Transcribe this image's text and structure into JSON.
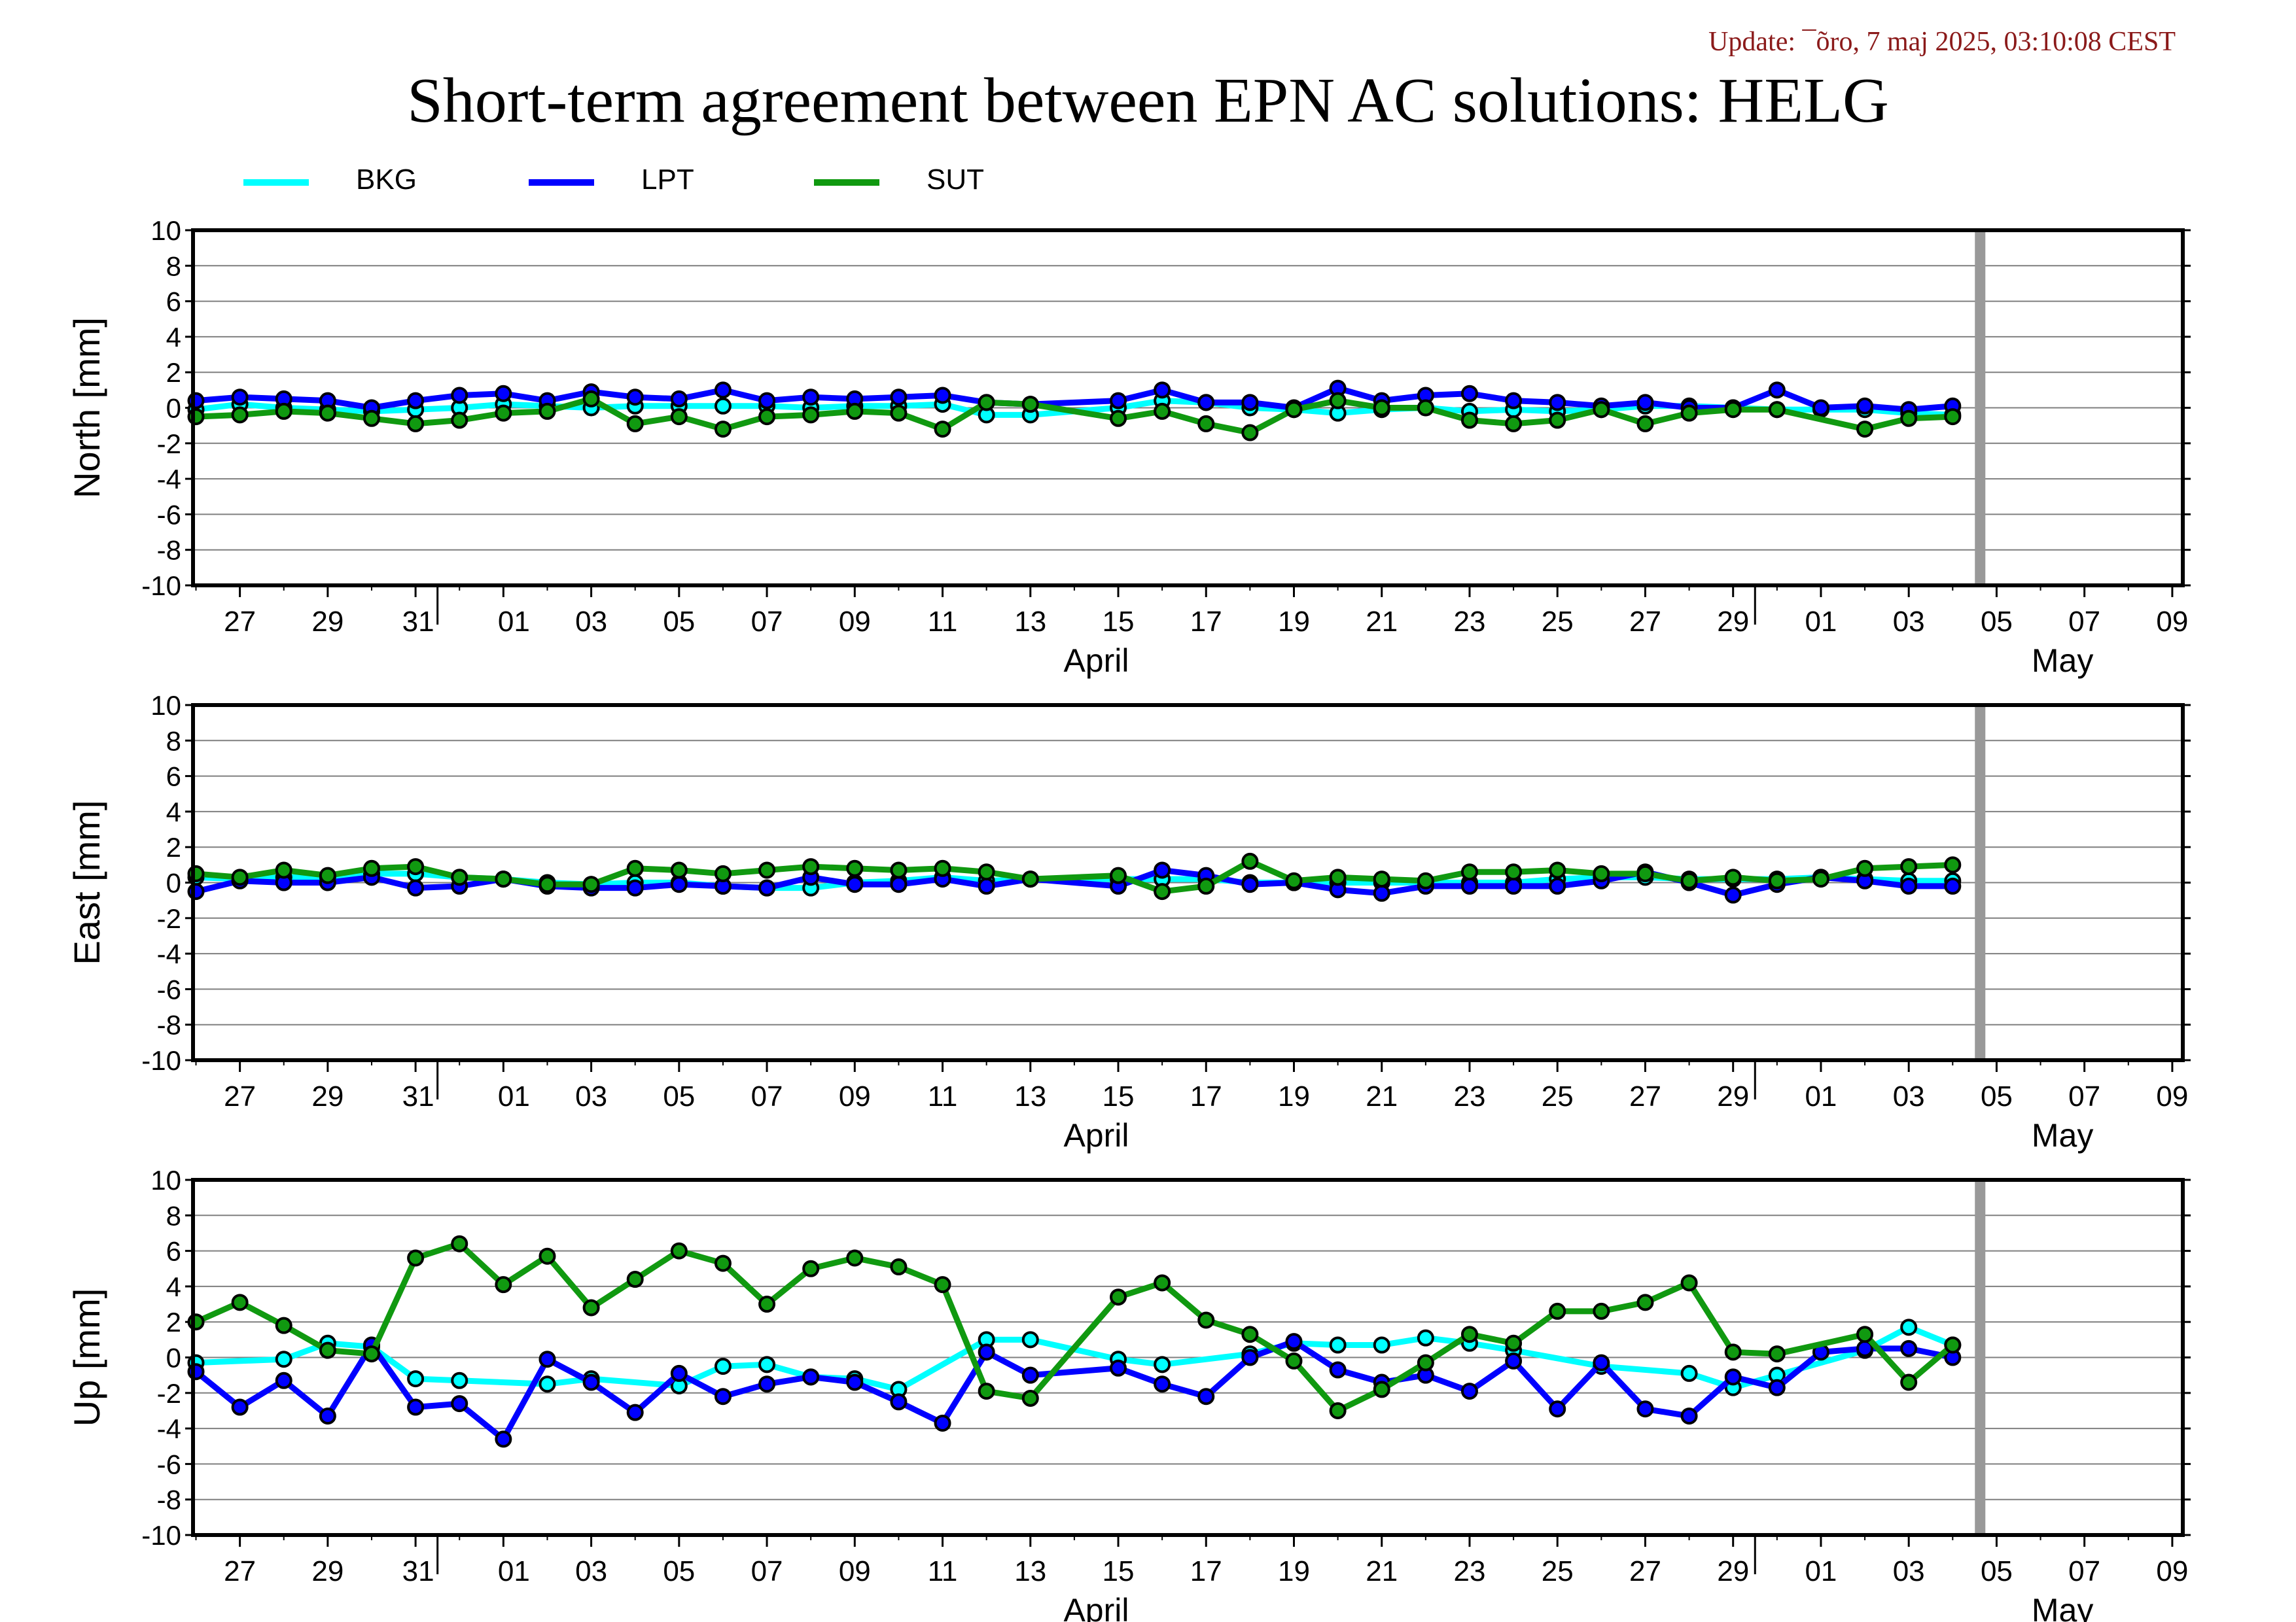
{
  "header": {
    "update_text": "Update: ¯õro, 7 maj 2025, 03:10:08 CEST",
    "title": "Short-term agreement between EPN AC solutions: HELG"
  },
  "legend": [
    {
      "label": "BKG",
      "color": "#00ffff"
    },
    {
      "label": "LPT",
      "color": "#0000ff"
    },
    {
      "label": "SUT",
      "color": "#109910"
    }
  ],
  "chart_data": [
    {
      "type": "line",
      "ylabel": "North [mm]",
      "ylim": [
        -10,
        10
      ],
      "yticks": [
        10,
        8,
        6,
        4,
        2,
        0,
        -2,
        -4,
        -6,
        -8,
        -10
      ],
      "grid": true,
      "x_tick_labels": [
        "27",
        "29",
        "31",
        "01",
        "03",
        "05",
        "07",
        "09",
        "11",
        "13",
        "15",
        "17",
        "19",
        "21",
        "23",
        "25",
        "27",
        "29",
        "01",
        "03",
        "05",
        "07",
        "09"
      ],
      "month_labels": [
        "April",
        "May"
      ],
      "x_dates": [
        "2025-03-26",
        "2025-03-27",
        "2025-03-28",
        "2025-03-29",
        "2025-03-30",
        "2025-03-31",
        "2025-04-01",
        "2025-04-02",
        "2025-04-03",
        "2025-04-04",
        "2025-04-05",
        "2025-04-06",
        "2025-04-07",
        "2025-04-08",
        "2025-04-09",
        "2025-04-10",
        "2025-04-11",
        "2025-04-12",
        "2025-04-13",
        "2025-04-14",
        "2025-04-15",
        "2025-04-16",
        "2025-04-17",
        "2025-04-18",
        "2025-04-19",
        "2025-04-20",
        "2025-04-21",
        "2025-04-22",
        "2025-04-23",
        "2025-04-24",
        "2025-04-25",
        "2025-04-26",
        "2025-04-27",
        "2025-04-28",
        "2025-04-29",
        "2025-04-30",
        "2025-05-01",
        "2025-05-02",
        "2025-05-03",
        "2025-05-04",
        "2025-05-05"
      ],
      "series": [
        {
          "name": "BKG",
          "color": "#00ffff",
          "values": [
            -0.1,
            0.2,
            0.0,
            -0.1,
            -0.2,
            -0.1,
            0.0,
            0.2,
            0.1,
            0.0,
            0.1,
            0.1,
            0.1,
            0.1,
            0.0,
            0.1,
            0.1,
            0.2,
            -0.4,
            -0.4,
            null,
            0.0,
            0.4,
            0.3,
            0.0,
            -0.1,
            -0.3,
            -0.1,
            0.0,
            -0.2,
            -0.1,
            -0.2,
            -0.1,
            0.1,
            0.1,
            0.0,
            -0.1,
            -0.1,
            -0.1,
            -0.3,
            -0.4
          ]
        },
        {
          "name": "LPT",
          "color": "#0000ff",
          "values": [
            0.4,
            0.6,
            0.5,
            0.4,
            0.0,
            0.4,
            0.7,
            0.8,
            0.4,
            0.9,
            0.6,
            0.5,
            1.0,
            0.4,
            0.6,
            0.5,
            0.6,
            0.7,
            0.3,
            0.2,
            null,
            0.4,
            1.0,
            0.3,
            0.3,
            0.0,
            1.1,
            0.4,
            0.7,
            0.8,
            0.4,
            0.3,
            0.1,
            0.3,
            0.0,
            0.0,
            1.0,
            0.0,
            0.1,
            -0.1,
            0.1
          ]
        },
        {
          "name": "SUT",
          "color": "#109910",
          "values": [
            -0.5,
            -0.4,
            -0.2,
            -0.3,
            -0.6,
            -0.9,
            -0.7,
            -0.3,
            -0.2,
            0.5,
            -0.9,
            -0.5,
            -1.2,
            -0.5,
            -0.4,
            -0.2,
            -0.3,
            -1.2,
            0.3,
            0.2,
            null,
            -0.6,
            -0.2,
            -0.9,
            -1.4,
            -0.1,
            0.4,
            0.0,
            0.0,
            -0.7,
            -0.9,
            -0.7,
            -0.1,
            -0.9,
            -0.3,
            -0.1,
            -0.1,
            null,
            -1.2,
            -0.6,
            -0.5
          ]
        }
      ]
    },
    {
      "type": "line",
      "ylabel": "East [mm]",
      "ylim": [
        -10,
        10
      ],
      "yticks": [
        10,
        8,
        6,
        4,
        2,
        0,
        -2,
        -4,
        -6,
        -8,
        -10
      ],
      "grid": true,
      "x_tick_labels": [
        "27",
        "29",
        "31",
        "01",
        "03",
        "05",
        "07",
        "09",
        "11",
        "13",
        "15",
        "17",
        "19",
        "21",
        "23",
        "25",
        "27",
        "29",
        "01",
        "03",
        "05",
        "07",
        "09"
      ],
      "month_labels": [
        "April",
        "May"
      ],
      "x_dates": [
        "2025-03-26",
        "2025-03-27",
        "2025-03-28",
        "2025-03-29",
        "2025-03-30",
        "2025-03-31",
        "2025-04-01",
        "2025-04-02",
        "2025-04-03",
        "2025-04-04",
        "2025-04-05",
        "2025-04-06",
        "2025-04-07",
        "2025-04-08",
        "2025-04-09",
        "2025-04-10",
        "2025-04-11",
        "2025-04-12",
        "2025-04-13",
        "2025-04-14",
        "2025-04-15",
        "2025-04-16",
        "2025-04-17",
        "2025-04-18",
        "2025-04-19",
        "2025-04-20",
        "2025-04-21",
        "2025-04-22",
        "2025-04-23",
        "2025-04-24",
        "2025-04-25",
        "2025-04-26",
        "2025-04-27",
        "2025-04-28",
        "2025-04-29",
        "2025-04-30",
        "2025-05-01",
        "2025-05-02",
        "2025-05-03",
        "2025-05-04",
        "2025-05-05"
      ],
      "series": [
        {
          "name": "BKG",
          "color": "#00ffff",
          "values": [
            0.3,
            0.2,
            0.3,
            0.3,
            0.5,
            0.5,
            0.3,
            0.2,
            0.0,
            -0.1,
            0.0,
            0.0,
            -0.2,
            -0.3,
            -0.3,
            0.0,
            0.1,
            0.3,
            0.1,
            0.2,
            null,
            0.2,
            0.2,
            0.2,
            0.0,
            0.0,
            0.0,
            0.0,
            0.0,
            0.0,
            0.0,
            0.2,
            0.3,
            0.3,
            0.2,
            0.2,
            0.2,
            0.3,
            0.2,
            0.1,
            0.1
          ]
        },
        {
          "name": "LPT",
          "color": "#0000ff",
          "values": [
            -0.5,
            0.1,
            0.0,
            0.0,
            0.3,
            -0.3,
            -0.2,
            0.2,
            -0.2,
            -0.3,
            -0.3,
            -0.1,
            -0.2,
            -0.3,
            0.3,
            -0.1,
            -0.1,
            0.2,
            -0.2,
            0.2,
            null,
            -0.2,
            0.7,
            0.4,
            -0.1,
            0.0,
            -0.4,
            -0.6,
            -0.2,
            -0.2,
            -0.2,
            -0.2,
            0.1,
            0.6,
            0.0,
            -0.7,
            -0.1,
            0.3,
            0.1,
            -0.2,
            -0.2
          ]
        },
        {
          "name": "SUT",
          "color": "#109910",
          "values": [
            0.5,
            0.3,
            0.7,
            0.4,
            0.8,
            0.9,
            0.3,
            0.2,
            -0.1,
            -0.1,
            0.8,
            0.7,
            0.5,
            0.7,
            0.9,
            0.8,
            0.7,
            0.8,
            0.6,
            0.2,
            null,
            0.4,
            -0.5,
            -0.2,
            1.2,
            0.1,
            0.3,
            0.2,
            0.1,
            0.6,
            0.6,
            0.7,
            0.5,
            0.5,
            0.1,
            0.3,
            0.1,
            0.2,
            0.8,
            0.9,
            1.0
          ]
        }
      ]
    },
    {
      "type": "line",
      "ylabel": "Up [mm]",
      "ylim": [
        -10,
        10
      ],
      "yticks": [
        10,
        8,
        6,
        4,
        2,
        0,
        -2,
        -4,
        -6,
        -8,
        -10
      ],
      "grid": true,
      "x_tick_labels": [
        "27",
        "29",
        "31",
        "01",
        "03",
        "05",
        "07",
        "09",
        "11",
        "13",
        "15",
        "17",
        "19",
        "21",
        "23",
        "25",
        "27",
        "29",
        "01",
        "03",
        "05",
        "07",
        "09"
      ],
      "month_labels": [
        "April",
        "May"
      ],
      "x_dates": [
        "2025-03-26",
        "2025-03-27",
        "2025-03-28",
        "2025-03-29",
        "2025-03-30",
        "2025-03-31",
        "2025-04-01",
        "2025-04-02",
        "2025-04-03",
        "2025-04-04",
        "2025-04-05",
        "2025-04-06",
        "2025-04-07",
        "2025-04-08",
        "2025-04-09",
        "2025-04-10",
        "2025-04-11",
        "2025-04-12",
        "2025-04-13",
        "2025-04-14",
        "2025-04-15",
        "2025-04-16",
        "2025-04-17",
        "2025-04-18",
        "2025-04-19",
        "2025-04-20",
        "2025-04-21",
        "2025-04-22",
        "2025-04-23",
        "2025-04-24",
        "2025-04-25",
        "2025-04-26",
        "2025-04-27",
        "2025-04-28",
        "2025-04-29",
        "2025-04-30",
        "2025-05-01",
        "2025-05-02",
        "2025-05-03",
        "2025-05-04",
        "2025-05-05"
      ],
      "series": [
        {
          "name": "BKG",
          "color": "#00ffff",
          "values": [
            -0.3,
            null,
            -0.1,
            0.8,
            0.6,
            -1.2,
            -1.3,
            null,
            -1.5,
            -1.2,
            null,
            -1.6,
            -0.5,
            -0.4,
            -1.1,
            -1.2,
            -1.8,
            null,
            1.0,
            1.0,
            null,
            -0.1,
            -0.4,
            null,
            0.2,
            0.8,
            0.7,
            0.7,
            1.1,
            0.8,
            0.4,
            null,
            -0.5,
            null,
            -0.9,
            -1.7,
            -1.0,
            null,
            0.4,
            1.7,
            0.7
          ]
        },
        {
          "name": "LPT",
          "color": "#0000ff",
          "values": [
            -0.8,
            -2.8,
            -1.3,
            -3.3,
            0.7,
            -2.8,
            -2.6,
            -4.6,
            -0.1,
            -1.4,
            -3.1,
            -0.9,
            -2.2,
            -1.5,
            -1.1,
            -1.4,
            -2.5,
            -3.7,
            0.3,
            -1.0,
            null,
            -0.6,
            -1.5,
            -2.2,
            0.0,
            0.9,
            -0.7,
            -1.4,
            -1.0,
            -1.9,
            -0.2,
            -2.9,
            -0.3,
            -2.9,
            -3.3,
            -1.1,
            -1.7,
            0.3,
            0.5,
            0.5,
            0.0
          ]
        },
        {
          "name": "SUT",
          "color": "#109910",
          "values": [
            2.0,
            3.1,
            1.8,
            0.4,
            0.2,
            5.6,
            6.4,
            4.1,
            5.7,
            2.8,
            4.4,
            6.0,
            5.3,
            3.0,
            5.0,
            5.6,
            5.1,
            4.1,
            -1.9,
            -2.3,
            null,
            3.4,
            4.2,
            2.1,
            1.3,
            -0.2,
            -3.0,
            -1.8,
            -0.3,
            1.3,
            0.8,
            2.6,
            2.6,
            3.1,
            4.2,
            0.3,
            0.2,
            null,
            1.3,
            -1.4,
            0.7
          ]
        }
      ]
    }
  ]
}
